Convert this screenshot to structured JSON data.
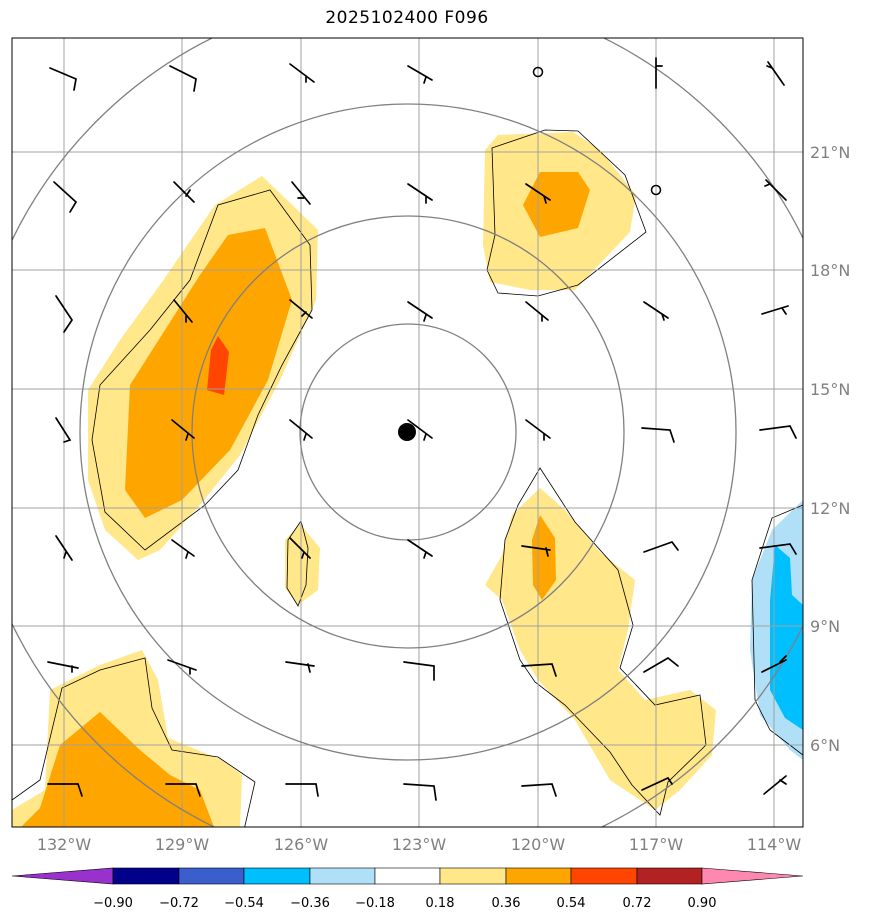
{
  "title": "2025102400 F096",
  "map": {
    "projection": "polar-range-rings",
    "lon_labels": [
      "132°W",
      "129°W",
      "126°W",
      "123°W",
      "120°W",
      "117°W",
      "114°W"
    ],
    "lat_labels": [
      "21°N",
      "18°N",
      "15°N",
      "12°N",
      "9°N",
      "6°N"
    ],
    "grid_color": "#a0a0a0",
    "ring_color": "#808080",
    "center_marker": "storm-center-dot"
  },
  "colorbar": {
    "ticks": [
      "−0.90",
      "−0.72",
      "−0.54",
      "−0.36",
      "−0.18",
      "0.18",
      "0.36",
      "0.54",
      "0.72",
      "0.90"
    ],
    "colors": [
      "#9932cc",
      "#00008b",
      "#3a5fcd",
      "#00bfff",
      "#b0e0f8",
      "#ffffff",
      "#ffe78a",
      "#ffa500",
      "#ff4500",
      "#b22222",
      "#ff88b0"
    ],
    "extend": "both"
  },
  "fill_colors": {
    "level_036": "#ffe78a",
    "level_054": "#ffa500",
    "level_072": "#ff4500",
    "level_neg036": "#b0e0f8",
    "level_neg054": "#00bfff"
  }
}
